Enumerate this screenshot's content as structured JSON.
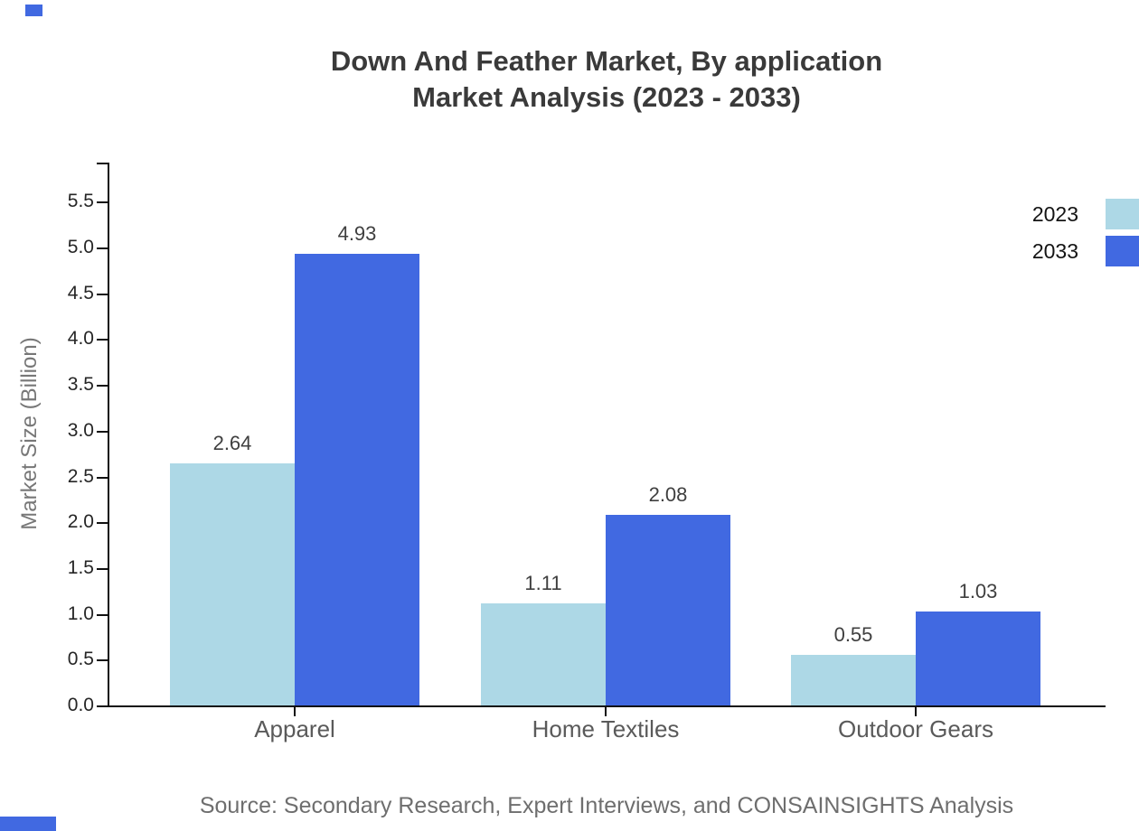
{
  "chart_data": {
    "type": "bar",
    "title": "Down And Feather Market, By application",
    "subtitle": "Market Analysis (2023 - 2033)",
    "ylabel": "Market Size (Billion)",
    "categories": [
      "Apparel",
      "Home Textiles",
      "Outdoor Gears"
    ],
    "series": [
      {
        "name": "2023",
        "color": "#ADD8E6",
        "values": [
          2.64,
          1.11,
          0.55
        ]
      },
      {
        "name": "2033",
        "color": "#4169E1",
        "values": [
          4.93,
          2.08,
          1.03
        ]
      }
    ],
    "yticks": [
      0.0,
      0.5,
      1.0,
      1.5,
      2.0,
      2.5,
      3.0,
      3.5,
      4.0,
      4.5,
      5.0,
      5.5
    ],
    "ylim": [
      0,
      5.93
    ],
    "grid": false,
    "legend_position": "top-right",
    "source": "Source: Secondary Research, Expert Interviews, and CONSAINSIGHTS Analysis"
  },
  "accent_color": "#4169E1"
}
